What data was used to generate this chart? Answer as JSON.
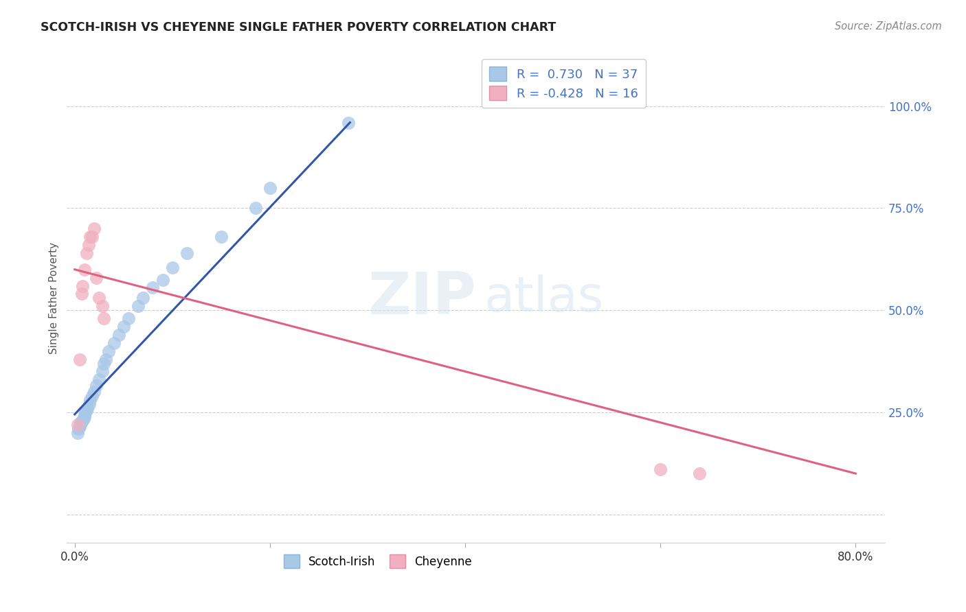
{
  "title": "SCOTCH-IRISH VS CHEYENNE SINGLE FATHER POVERTY CORRELATION CHART",
  "source": "Source: ZipAtlas.com",
  "ylabel": "Single Father Poverty",
  "xlim_min": -0.008,
  "xlim_max": 0.83,
  "ylim_min": -0.07,
  "ylim_max": 1.13,
  "xticks": [
    0.0,
    0.2,
    0.4,
    0.6,
    0.8
  ],
  "xtick_labels": [
    "0.0%",
    "",
    "",
    "",
    "80.0%"
  ],
  "ytick_positions": [
    0.0,
    0.25,
    0.5,
    0.75,
    1.0
  ],
  "ytick_labels": [
    "",
    "25.0%",
    "50.0%",
    "75.0%",
    "100.0%"
  ],
  "scotch_irish_R": 0.73,
  "scotch_irish_N": 37,
  "cheyenne_R": -0.428,
  "cheyenne_N": 16,
  "blue_color": "#A8C8E8",
  "pink_color": "#F0B0C0",
  "blue_line_color": "#3355AA",
  "pink_line_color": "#E06080",
  "scotch_irish_x": [
    0.003,
    0.004,
    0.005,
    0.006,
    0.006,
    0.007,
    0.008,
    0.009,
    0.01,
    0.01,
    0.011,
    0.012,
    0.013,
    0.015,
    0.016,
    0.018,
    0.02,
    0.022,
    0.025,
    0.028,
    0.03,
    0.032,
    0.035,
    0.04,
    0.045,
    0.05,
    0.055,
    0.065,
    0.07,
    0.08,
    0.09,
    0.1,
    0.115,
    0.15,
    0.185,
    0.2,
    0.28
  ],
  "scotch_irish_y": [
    0.2,
    0.21,
    0.215,
    0.22,
    0.225,
    0.228,
    0.23,
    0.235,
    0.24,
    0.245,
    0.25,
    0.255,
    0.26,
    0.27,
    0.28,
    0.29,
    0.3,
    0.315,
    0.33,
    0.35,
    0.37,
    0.38,
    0.4,
    0.42,
    0.44,
    0.46,
    0.48,
    0.51,
    0.53,
    0.555,
    0.575,
    0.605,
    0.64,
    0.68,
    0.75,
    0.8,
    0.96
  ],
  "cheyenne_x": [
    0.003,
    0.005,
    0.007,
    0.008,
    0.01,
    0.012,
    0.014,
    0.016,
    0.018,
    0.02,
    0.022,
    0.025,
    0.028,
    0.03,
    0.6,
    0.64
  ],
  "cheyenne_y": [
    0.22,
    0.38,
    0.54,
    0.56,
    0.6,
    0.64,
    0.66,
    0.68,
    0.68,
    0.7,
    0.58,
    0.53,
    0.51,
    0.48,
    0.11,
    0.1
  ]
}
